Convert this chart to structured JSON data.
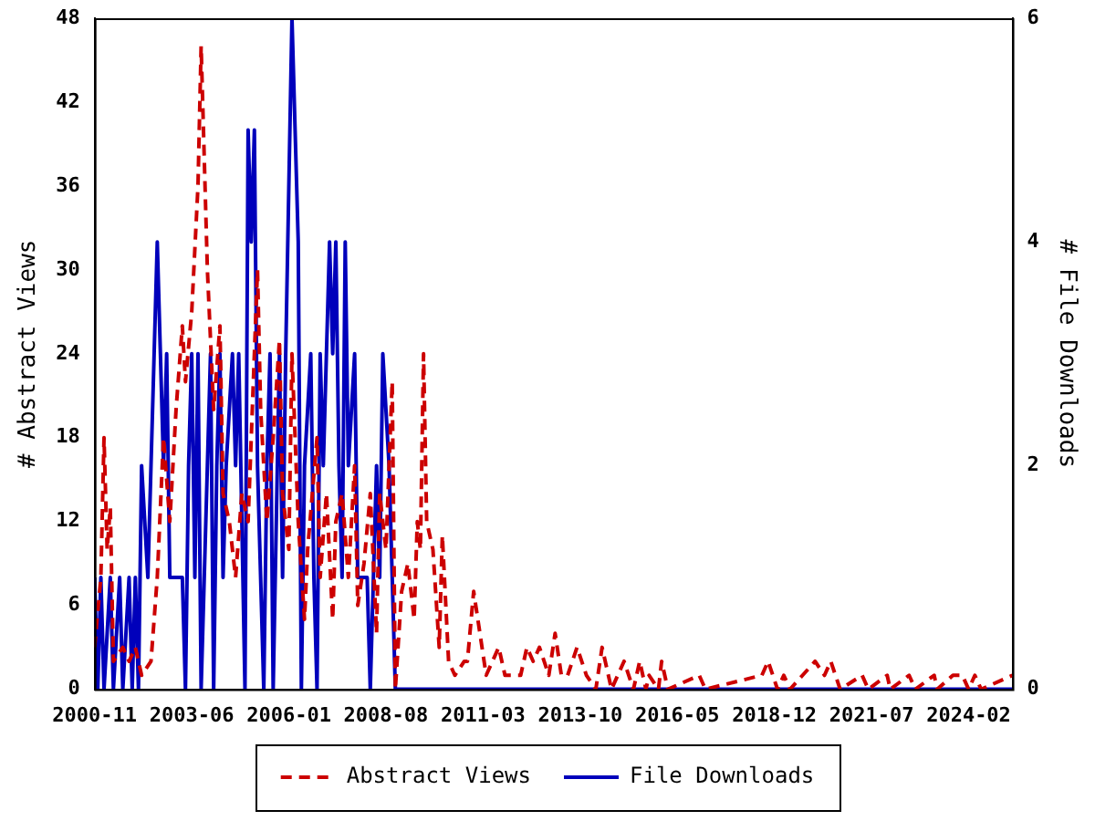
{
  "chart_data": {
    "type": "line",
    "ylabel": "# Abstract Views",
    "y2label": "# File Downloads",
    "xlim": [
      "2000-11",
      "2025-04"
    ],
    "xticks": [
      "2000-11",
      "2003-06",
      "2006-01",
      "2008-08",
      "2011-03",
      "2013-10",
      "2016-05",
      "2018-12",
      "2021-07",
      "2024-02"
    ],
    "ylim": [
      0,
      48
    ],
    "yticks": [
      0,
      6,
      12,
      18,
      24,
      30,
      36,
      42,
      48
    ],
    "y2lim": [
      0,
      6
    ],
    "y2ticks": [
      0,
      2,
      4,
      6
    ],
    "grid": false,
    "legend": "bottom",
    "marker": "none",
    "series": [
      {
        "name": "Abstract Views",
        "color": "#cc0000",
        "line_style": "dashed",
        "x": [
          "2000-11",
          "2001-01",
          "2001-02",
          "2001-03",
          "2001-04",
          "2001-05",
          "2001-08",
          "2001-10",
          "2001-12",
          "2002-02",
          "2002-05",
          "2002-07",
          "2002-09",
          "2002-11",
          "2003-01",
          "2003-03",
          "2003-04",
          "2003-06",
          "2003-08",
          "2003-09",
          "2003-11",
          "2004-01",
          "2004-03",
          "2004-04",
          "2004-06",
          "2004-08",
          "2004-10",
          "2004-12",
          "2005-03",
          "2005-04",
          "2005-06",
          "2005-08",
          "2005-10",
          "2005-11",
          "2006-01",
          "2006-02",
          "2006-04",
          "2006-06",
          "2006-07",
          "2006-10",
          "2006-11",
          "2007-01",
          "2007-03",
          "2007-04",
          "2007-06",
          "2007-08",
          "2007-10",
          "2007-11",
          "2008-01",
          "2008-03",
          "2008-05",
          "2008-06",
          "2008-08",
          "2008-10",
          "2008-11",
          "2009-01",
          "2009-03",
          "2009-05",
          "2009-06",
          "2009-07",
          "2009-08",
          "2009-09",
          "2009-11",
          "2010-01",
          "2010-02",
          "2010-04",
          "2010-06",
          "2010-09",
          "2010-10",
          "2010-12",
          "2011-02",
          "2011-04",
          "2011-06",
          "2011-08",
          "2011-10",
          "2012-01",
          "2012-03",
          "2012-05",
          "2012-07",
          "2012-09",
          "2012-12",
          "2013-02",
          "2013-04",
          "2013-06",
          "2013-09",
          "2013-12",
          "2014-03",
          "2014-05",
          "2014-08",
          "2014-12",
          "2015-03",
          "2015-05",
          "2015-07",
          "2015-08",
          "2015-11",
          "2015-12",
          "2016-02",
          "2016-12",
          "2017-02",
          "2018-08",
          "2018-10",
          "2019-01",
          "2019-03",
          "2019-05",
          "2019-09",
          "2020-01",
          "2020-04",
          "2020-06",
          "2020-09",
          "2021-04",
          "2021-06",
          "2021-12",
          "2022-01",
          "2022-07",
          "2022-09",
          "2023-03",
          "2023-04",
          "2023-09",
          "2023-12",
          "2024-02",
          "2024-04",
          "2024-06",
          "2025-04"
        ],
        "values": [
          3,
          8,
          18,
          10,
          13,
          2,
          3,
          2,
          3,
          1,
          2,
          8,
          18,
          12,
          20,
          26,
          22,
          27,
          36,
          46,
          30,
          20,
          26,
          14,
          12,
          8,
          14,
          12,
          30,
          20,
          12,
          18,
          25,
          14,
          10,
          24,
          12,
          5,
          10,
          18,
          8,
          14,
          5,
          12,
          14,
          8,
          16,
          6,
          9,
          14,
          4,
          14,
          10,
          22,
          0,
          7,
          9,
          5,
          12,
          10,
          24,
          12,
          10,
          3,
          11,
          2,
          1,
          2,
          2,
          7,
          4,
          1,
          2,
          3,
          1,
          1,
          1,
          3,
          2,
          3,
          1,
          4,
          1,
          1,
          3,
          1,
          0,
          3,
          0,
          2,
          0,
          2,
          0,
          1,
          0,
          2,
          0,
          1,
          0,
          1,
          2,
          0,
          1,
          0,
          1,
          2,
          1,
          2,
          0,
          1,
          0,
          1,
          0,
          1,
          0,
          1,
          0,
          1,
          1,
          0,
          1,
          0,
          1
        ]
      },
      {
        "name": "File Downloads",
        "color": "#0000bb",
        "line_style": "solid",
        "axis": "y2",
        "x": [
          "2000-11",
          "2000-12",
          "2001-01",
          "2001-02",
          "2001-04",
          "2001-05",
          "2001-07",
          "2001-08",
          "2001-10",
          "2001-11",
          "2001-12",
          "2002-01",
          "2002-02",
          "2002-04",
          "2002-05",
          "2002-07",
          "2002-08",
          "2002-09",
          "2002-10",
          "2002-11",
          "2003-03",
          "2003-04",
          "2003-05",
          "2003-06",
          "2003-07",
          "2003-08",
          "2003-09",
          "2003-11",
          "2003-12",
          "2004-01",
          "2004-02",
          "2004-03",
          "2004-04",
          "2004-05",
          "2004-07",
          "2004-08",
          "2004-09",
          "2004-11",
          "2004-12",
          "2005-01",
          "2005-02",
          "2005-03",
          "2005-05",
          "2005-06",
          "2005-07",
          "2005-08",
          "2005-10",
          "2005-11",
          "2005-12",
          "2006-02",
          "2006-03",
          "2006-04",
          "2006-05",
          "2006-06",
          "2006-08",
          "2006-09",
          "2006-10",
          "2006-11",
          "2006-12",
          "2007-02",
          "2007-03",
          "2007-04",
          "2007-05",
          "2007-06",
          "2007-07",
          "2007-08",
          "2007-10",
          "2007-11",
          "2008-02",
          "2008-03",
          "2008-05",
          "2008-06",
          "2008-07",
          "2008-09",
          "2008-10",
          "2008-11",
          "2025-04"
        ],
        "values": [
          1,
          0,
          1,
          0,
          1,
          0,
          1,
          0,
          1,
          0,
          1,
          0,
          2,
          1,
          2,
          4,
          3,
          2,
          3,
          1,
          1,
          0,
          2,
          3,
          1,
          3,
          0,
          2,
          3,
          0,
          2,
          3,
          1,
          2,
          3,
          2,
          3,
          0,
          5,
          4,
          5,
          2,
          0,
          2,
          3,
          0,
          3,
          1,
          3,
          6,
          5,
          4,
          0,
          2,
          3,
          1,
          0,
          3,
          2,
          4,
          3,
          4,
          2,
          1,
          4,
          2,
          3,
          1,
          1,
          0,
          2,
          1,
          3,
          2,
          1,
          0,
          0
        ]
      }
    ]
  }
}
